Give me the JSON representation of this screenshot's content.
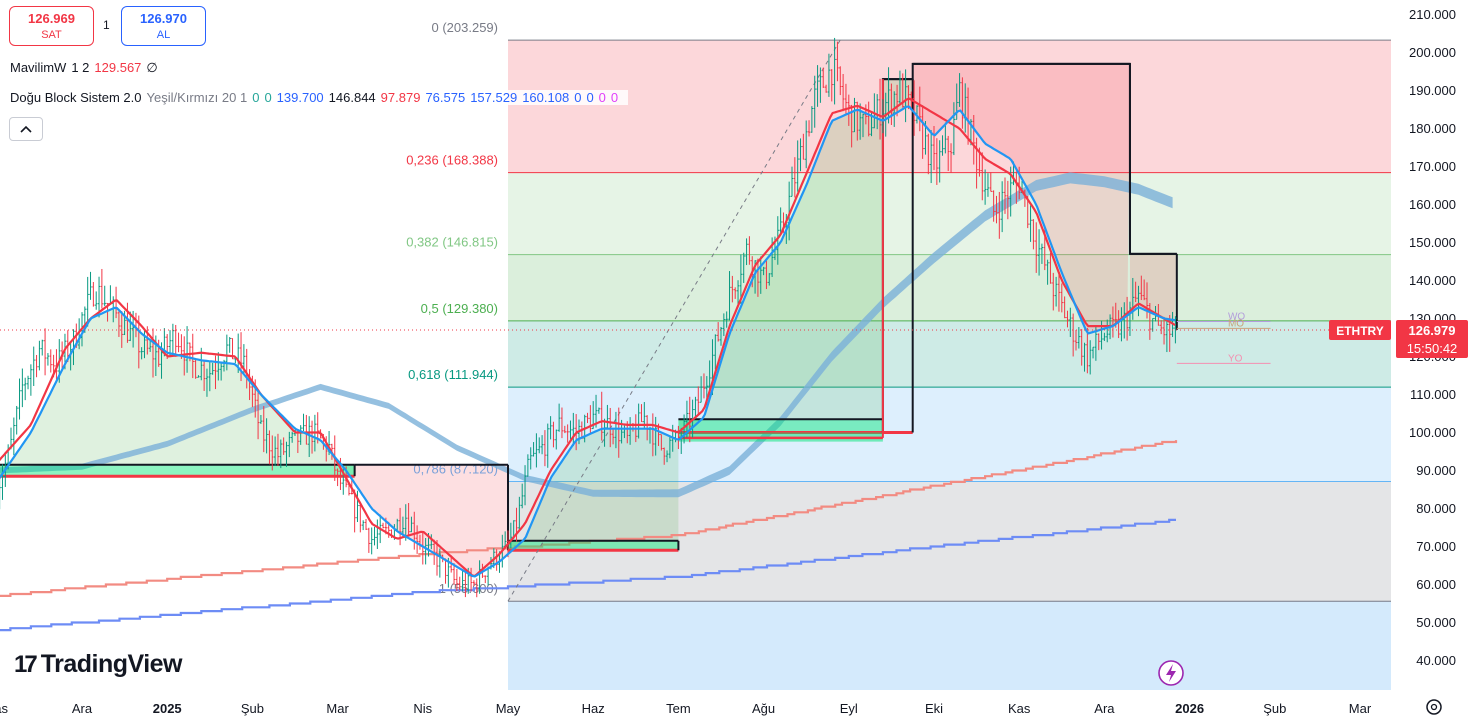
{
  "header": {
    "sell": {
      "price": "126.969",
      "label": "SAT"
    },
    "spread": "1",
    "buy": {
      "price": "126.970",
      "label": "AL"
    }
  },
  "legend": {
    "row1": {
      "name": "MavilimW",
      "params": "1 2",
      "value": "129.567",
      "extra": "∅"
    },
    "row2": {
      "name": "Doğu Block Sistem 2.0",
      "params": "Yeşil/Kırmızı 20 1",
      "values": [
        {
          "text": "0",
          "color": "#26a69a"
        },
        {
          "text": "0",
          "color": "#26a69a"
        },
        {
          "text": "139.700",
          "color": "#2962ff"
        },
        {
          "text": "146.844",
          "color": "#131722"
        },
        {
          "text": "97.879",
          "color": "#f23645"
        },
        {
          "text": "76.575",
          "color": "#2962ff"
        },
        {
          "text": "157.529",
          "color": "#2962ff"
        },
        {
          "text": "160.108",
          "color": "#2962ff"
        },
        {
          "text": "0",
          "color": "#2962ff"
        },
        {
          "text": "0",
          "color": "#2962ff"
        },
        {
          "text": "0",
          "color": "#e040fb"
        },
        {
          "text": "0",
          "color": "#e040fb"
        }
      ]
    },
    "collapse_icon": "chevron-up-icon"
  },
  "watermark": "TradingView",
  "symbol": "ETHTRY",
  "last_price": "126.979",
  "countdown": "15:50:42",
  "chart_data": {
    "type": "candlestick",
    "symbol": "ETHTRY",
    "y_ticks": [
      40,
      50,
      60,
      70,
      80,
      90,
      100,
      110,
      120,
      130,
      140,
      150,
      160,
      170,
      180,
      190,
      200,
      210
    ],
    "y_tick_labels": [
      "40.000",
      "50.000",
      "60.000",
      "70.000",
      "80.000",
      "90.000",
      "100.000",
      "110.000",
      "120.000",
      "130.000",
      "140.000",
      "150.000",
      "160.000",
      "170.000",
      "180.000",
      "190.000",
      "200.000",
      "210.000"
    ],
    "ylim": [
      33,
      212
    ],
    "x_labels": [
      {
        "text": "Kas",
        "t": -1,
        "bold": false
      },
      {
        "text": "Ara",
        "t": 0,
        "bold": false
      },
      {
        "text": "2025",
        "t": 1,
        "bold": true
      },
      {
        "text": "Şub",
        "t": 2,
        "bold": false
      },
      {
        "text": "Mar",
        "t": 3,
        "bold": false
      },
      {
        "text": "Nis",
        "t": 4,
        "bold": false
      },
      {
        "text": "May",
        "t": 5,
        "bold": false
      },
      {
        "text": "Haz",
        "t": 6,
        "bold": false
      },
      {
        "text": "Tem",
        "t": 7,
        "bold": false
      },
      {
        "text": "Ağu",
        "t": 8,
        "bold": false
      },
      {
        "text": "Eyl",
        "t": 9,
        "bold": false
      },
      {
        "text": "Eki",
        "t": 10,
        "bold": false
      },
      {
        "text": "Kas",
        "t": 11,
        "bold": false
      },
      {
        "text": "Ara",
        "t": 12,
        "bold": false
      },
      {
        "text": "2026",
        "t": 13,
        "bold": true
      },
      {
        "text": "Şub",
        "t": 14,
        "bold": false
      },
      {
        "text": "Mar",
        "t": 15,
        "bold": false
      }
    ],
    "fibonacci": {
      "t_start": 5.0,
      "t_end": 15.3,
      "levels": [
        {
          "ratio": "0",
          "price": 203.259,
          "label": "0 (203.259)",
          "color": "#787b86"
        },
        {
          "ratio": "0.236",
          "price": 168.388,
          "label": "0,236 (168.388)",
          "color": "#f23645"
        },
        {
          "ratio": "0.382",
          "price": 146.815,
          "label": "0,382 (146.815)",
          "color": "#81c784"
        },
        {
          "ratio": "0.5",
          "price": 129.38,
          "label": "0,5 (129.380)",
          "color": "#4caf50"
        },
        {
          "ratio": "0.618",
          "price": 111.944,
          "label": "0,618 (111.944)",
          "color": "#089981"
        },
        {
          "ratio": "0.786",
          "price": 87.12,
          "label": "0,786 (87.120)",
          "color": "#64b5f6"
        },
        {
          "ratio": "1",
          "price": 55.6,
          "label": "1 (55.600)",
          "color": "#787b86"
        }
      ]
    },
    "candle_path": [
      [
        -1.0,
        85
      ],
      [
        -0.85,
        95
      ],
      [
        -0.7,
        112
      ],
      [
        -0.5,
        122
      ],
      [
        -0.3,
        118
      ],
      [
        -0.1,
        124
      ],
      [
        0.0,
        130
      ],
      [
        0.15,
        138
      ],
      [
        0.3,
        134
      ],
      [
        0.5,
        128
      ],
      [
        0.7,
        122
      ],
      [
        0.9,
        120
      ],
      [
        1.1,
        126
      ],
      [
        1.3,
        118
      ],
      [
        1.5,
        116
      ],
      [
        1.7,
        122
      ],
      [
        1.9,
        118
      ],
      [
        2.1,
        100
      ],
      [
        2.3,
        94
      ],
      [
        2.5,
        98
      ],
      [
        2.7,
        100
      ],
      [
        2.9,
        96
      ],
      [
        3.0,
        88
      ],
      [
        3.2,
        80
      ],
      [
        3.4,
        72
      ],
      [
        3.6,
        74
      ],
      [
        3.8,
        78
      ],
      [
        4.0,
        70
      ],
      [
        4.2,
        66
      ],
      [
        4.4,
        60
      ],
      [
        4.6,
        60
      ],
      [
        4.8,
        66
      ],
      [
        5.0,
        70
      ],
      [
        5.1,
        76
      ],
      [
        5.25,
        92
      ],
      [
        5.4,
        96
      ],
      [
        5.6,
        102
      ],
      [
        5.8,
        100
      ],
      [
        6.0,
        104
      ],
      [
        6.2,
        102
      ],
      [
        6.4,
        98
      ],
      [
        6.6,
        104
      ],
      [
        6.8,
        96
      ],
      [
        7.0,
        98
      ],
      [
        7.2,
        106
      ],
      [
        7.4,
        120
      ],
      [
        7.6,
        136
      ],
      [
        7.8,
        148
      ],
      [
        8.0,
        140
      ],
      [
        8.2,
        152
      ],
      [
        8.4,
        170
      ],
      [
        8.6,
        188
      ],
      [
        8.8,
        196
      ],
      [
        9.0,
        184
      ],
      [
        9.2,
        180
      ],
      [
        9.4,
        186
      ],
      [
        9.6,
        190
      ],
      [
        9.8,
        182
      ],
      [
        10.0,
        170
      ],
      [
        10.2,
        176
      ],
      [
        10.3,
        190
      ],
      [
        10.5,
        172
      ],
      [
        10.7,
        158
      ],
      [
        10.9,
        164
      ],
      [
        11.0,
        166
      ],
      [
        11.2,
        150
      ],
      [
        11.4,
        138
      ],
      [
        11.6,
        128
      ],
      [
        11.8,
        120
      ],
      [
        12.0,
        126
      ],
      [
        12.2,
        128
      ],
      [
        12.4,
        136
      ],
      [
        12.6,
        128
      ],
      [
        12.75,
        126
      ],
      [
        12.85,
        127
      ]
    ],
    "series": [
      {
        "name": "MavilimW",
        "color": "#2196f3",
        "values": [
          [
            -1.0,
            87
          ],
          [
            -0.6,
            100
          ],
          [
            -0.2,
            118
          ],
          [
            0.1,
            130
          ],
          [
            0.4,
            133
          ],
          [
            0.7,
            126
          ],
          [
            1.0,
            121
          ],
          [
            1.4,
            119
          ],
          [
            1.8,
            118
          ],
          [
            2.1,
            110
          ],
          [
            2.5,
            101
          ],
          [
            2.8,
            98
          ],
          [
            3.1,
            90
          ],
          [
            3.4,
            80
          ],
          [
            3.7,
            74
          ],
          [
            4.0,
            70
          ],
          [
            4.3,
            66
          ],
          [
            4.6,
            62
          ],
          [
            4.9,
            66
          ],
          [
            5.2,
            72
          ],
          [
            5.5,
            88
          ],
          [
            5.8,
            98
          ],
          [
            6.1,
            101
          ],
          [
            6.4,
            101
          ],
          [
            6.7,
            101
          ],
          [
            7.0,
            98
          ],
          [
            7.3,
            104
          ],
          [
            7.6,
            126
          ],
          [
            7.9,
            142
          ],
          [
            8.2,
            150
          ],
          [
            8.5,
            165
          ],
          [
            8.8,
            182
          ],
          [
            9.1,
            185
          ],
          [
            9.4,
            182
          ],
          [
            9.7,
            186
          ],
          [
            10.0,
            178
          ],
          [
            10.3,
            185
          ],
          [
            10.6,
            176
          ],
          [
            10.9,
            172
          ],
          [
            11.2,
            160
          ],
          [
            11.5,
            142
          ],
          [
            11.8,
            126
          ],
          [
            12.1,
            128
          ],
          [
            12.4,
            133
          ],
          [
            12.7,
            130
          ],
          [
            12.85,
            129.5
          ]
        ]
      },
      {
        "name": "",
        "color": "#f23645",
        "values": [
          [
            -1.0,
            92
          ],
          [
            -0.6,
            102
          ],
          [
            -0.2,
            122
          ],
          [
            0.1,
            130
          ],
          [
            0.4,
            135
          ],
          [
            0.7,
            128
          ],
          [
            1.0,
            120
          ],
          [
            1.4,
            121
          ],
          [
            1.8,
            120
          ],
          [
            2.1,
            110
          ],
          [
            2.5,
            100
          ],
          [
            2.8,
            100
          ],
          [
            3.1,
            88
          ],
          [
            3.4,
            76
          ],
          [
            3.7,
            72
          ],
          [
            4.0,
            74
          ],
          [
            4.3,
            68
          ],
          [
            4.6,
            62
          ],
          [
            4.9,
            68
          ],
          [
            5.2,
            76
          ],
          [
            5.5,
            90
          ],
          [
            5.8,
            100
          ],
          [
            6.1,
            103
          ],
          [
            6.4,
            102
          ],
          [
            6.7,
            102
          ],
          [
            7.0,
            100
          ],
          [
            7.3,
            106
          ],
          [
            7.6,
            128
          ],
          [
            7.9,
            144
          ],
          [
            8.2,
            152
          ],
          [
            8.5,
            168
          ],
          [
            8.8,
            184
          ],
          [
            9.1,
            186
          ],
          [
            9.4,
            183
          ],
          [
            9.7,
            188
          ],
          [
            10.0,
            184
          ],
          [
            10.3,
            180
          ],
          [
            10.6,
            172
          ],
          [
            10.9,
            168
          ],
          [
            11.2,
            158
          ],
          [
            11.5,
            140
          ],
          [
            11.8,
            128
          ],
          [
            12.1,
            128
          ],
          [
            12.4,
            134
          ],
          [
            12.7,
            130
          ],
          [
            12.85,
            128
          ]
        ]
      },
      {
        "name": "",
        "color": "#7ab0d8",
        "values": [
          [
            -1.0,
            90
          ],
          [
            0.0,
            91
          ],
          [
            1.0,
            97
          ],
          [
            2.0,
            106
          ],
          [
            2.8,
            112
          ],
          [
            3.6,
            107
          ],
          [
            4.4,
            96
          ],
          [
            5.2,
            88
          ],
          [
            6.0,
            84
          ],
          [
            7.0,
            84
          ],
          [
            7.6,
            90
          ],
          [
            8.2,
            103
          ],
          [
            8.8,
            120
          ],
          [
            9.4,
            134
          ],
          [
            10.0,
            146
          ],
          [
            10.6,
            157
          ],
          [
            11.2,
            165
          ],
          [
            11.6,
            167
          ],
          [
            12.0,
            166
          ],
          [
            12.4,
            164
          ],
          [
            12.85,
            160
          ]
        ]
      },
      {
        "name": "",
        "color": "#f28b82",
        "values": [
          [
            -1.0,
            57
          ],
          [
            4.0,
            68
          ],
          [
            7.0,
            73
          ],
          [
            10.0,
            86
          ],
          [
            12.85,
            98
          ]
        ]
      },
      {
        "name": "",
        "color": "#6d8cf5",
        "values": [
          [
            -1.0,
            48
          ],
          [
            4.0,
            58
          ],
          [
            7.0,
            62
          ],
          [
            10.0,
            70
          ],
          [
            12.85,
            77
          ]
        ]
      }
    ],
    "blocks": [
      {
        "t0": -1.0,
        "t1": 3.2,
        "top": 91.5,
        "bottom": 88.5,
        "fill": "green"
      },
      {
        "t0": 3.2,
        "t1": 5.0,
        "top": 91.5,
        "bottom": 69,
        "fill": "red"
      },
      {
        "t0": 5.0,
        "t1": 7.0,
        "top": 71.5,
        "bottom": 69,
        "fill": "green"
      },
      {
        "t0": 7.0,
        "t1": 9.4,
        "top": 103.5,
        "bottom": 100,
        "fill": "green"
      },
      {
        "t0": 9.4,
        "t1": 9.75,
        "top": 193,
        "bottom": 100,
        "fill": "green"
      },
      {
        "t0": 9.75,
        "t1": 12.3,
        "top": 197,
        "bottom": 147,
        "fill": "red"
      },
      {
        "t0": 12.3,
        "t1": 12.85,
        "top": 147,
        "bottom": 127,
        "fill": "red"
      }
    ],
    "markers": [
      {
        "text": "WO",
        "t": 13.45,
        "price": 129.2,
        "color": "#b39ddb"
      },
      {
        "text": "MO",
        "t": 13.45,
        "price": 127.4,
        "color": "#c9a27a"
      },
      {
        "text": "YO",
        "t": 13.45,
        "price": 118.2,
        "color": "#f48fb1"
      }
    ],
    "last_value": 126.979
  }
}
